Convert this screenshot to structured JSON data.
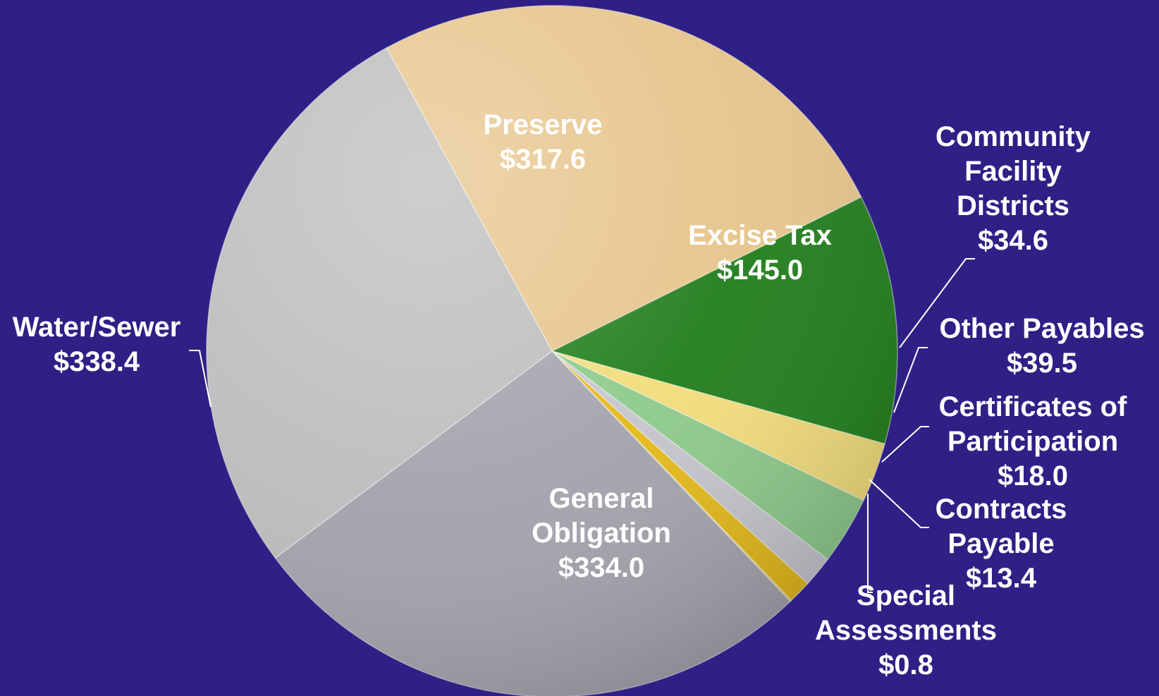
{
  "chart_data": {
    "type": "pie",
    "title": "",
    "slices": [
      {
        "key": "preserve",
        "label_lines": [
          "Preserve",
          "$317.6"
        ],
        "value": 317.6,
        "color": "#e6c48a"
      },
      {
        "key": "excise_tax",
        "label_lines": [
          "Excise Tax",
          "$145.0"
        ],
        "value": 145.0,
        "color": "#1f7d1a"
      },
      {
        "key": "community_facility_districts",
        "label_lines": [
          "Community",
          "Facility",
          "Districts",
          "$34.6"
        ],
        "value": 34.6,
        "color": "#f2dc7a"
      },
      {
        "key": "other_payables",
        "label_lines": [
          "Other Payables",
          "$39.5"
        ],
        "value": 39.5,
        "color": "#8cc98a"
      },
      {
        "key": "certificates_of_participation",
        "label_lines": [
          "Certificates of",
          "Participation",
          "$18.0"
        ],
        "value": 18.0,
        "color": "#c4c4cc"
      },
      {
        "key": "contracts_payable",
        "label_lines": [
          "Contracts",
          "Payable",
          "$13.4"
        ],
        "value": 13.4,
        "color": "#e3b818"
      },
      {
        "key": "special_assessments",
        "label_lines": [
          "Special",
          "Assessments",
          "$0.8"
        ],
        "value": 0.8,
        "color": "#d6b84a"
      },
      {
        "key": "general_obligation",
        "label_lines": [
          "General",
          "Obligation",
          "$334.0"
        ],
        "value": 334.0,
        "color": "#a2a2ac"
      },
      {
        "key": "water_sewer",
        "label_lines": [
          "Water/Sewer",
          "$338.4"
        ],
        "value": 338.4,
        "color": "#bcbcbc"
      }
    ],
    "units": "$",
    "legend": "none"
  }
}
